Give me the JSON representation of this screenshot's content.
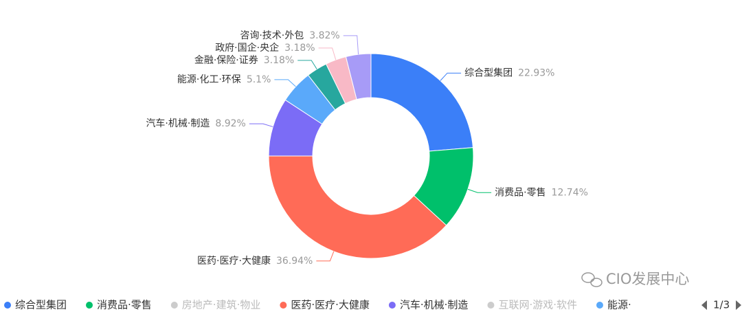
{
  "chart_data": {
    "type": "donut",
    "categories": [
      "综合型集团",
      "消费品·零售",
      "医药·医疗·大健康",
      "汽车·机械·制造",
      "能源·化工·环保",
      "金融·保险·证券",
      "政府·国企·央企",
      "咨询·技术·外包"
    ],
    "values": [
      22.93,
      12.74,
      36.94,
      8.92,
      5.1,
      3.18,
      3.18,
      3.82
    ],
    "value_labels": [
      "22.93%",
      "12.74%",
      "36.94%",
      "8.92%",
      "5.1%",
      "3.18%",
      "3.18%",
      "3.82%"
    ],
    "colors": [
      "#3b7ff8",
      "#00c06b",
      "#ff6b57",
      "#7b6cf6",
      "#5aa9fa",
      "#27a79e",
      "#f8b9c6",
      "#a79bf7"
    ]
  },
  "legend": {
    "items": [
      {
        "name": "综合型集团",
        "color": "#3b7ff8"
      },
      {
        "name": "消费品·零售",
        "color": "#00c06b"
      },
      {
        "name": "房地产·建筑·物业",
        "color": "#cccccc"
      },
      {
        "name": "医药·医疗·大健康",
        "color": "#ff6b57"
      },
      {
        "name": "汽车·机械·制造",
        "color": "#7b6cf6"
      },
      {
        "name": "互联网·游戏·软件",
        "color": "#cccccc"
      },
      {
        "name": "能源·",
        "color": "#5aa9fa"
      }
    ],
    "page": "1/3"
  },
  "watermark": "CIO发展中心"
}
